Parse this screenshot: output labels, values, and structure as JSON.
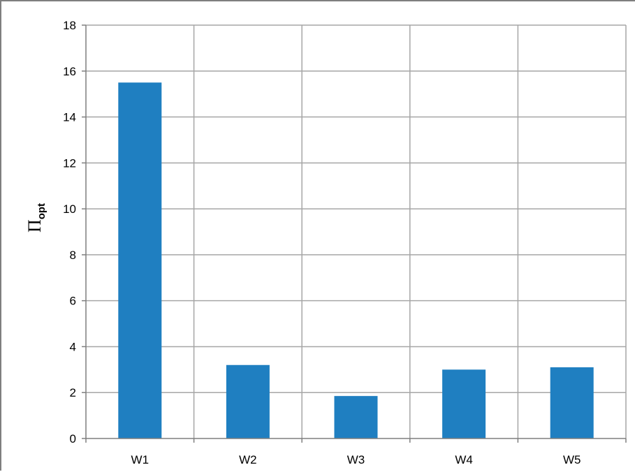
{
  "chart_data": {
    "type": "bar",
    "categories": [
      "W1",
      "W2",
      "W3",
      "W4",
      "W5"
    ],
    "values": [
      15.5,
      3.2,
      1.85,
      3.0,
      3.1
    ],
    "title": "",
    "xlabel": "",
    "ylabel": {
      "main": "Π",
      "subscript": "opt"
    },
    "ylim": [
      0,
      18
    ],
    "yticks": [
      0,
      2,
      4,
      6,
      8,
      10,
      12,
      14,
      16,
      18
    ],
    "grid": true,
    "legend": "none",
    "colors": {
      "bar": "#1f7fc1",
      "grid": "#a6a6a6",
      "axis": "#7f7f7f"
    }
  }
}
